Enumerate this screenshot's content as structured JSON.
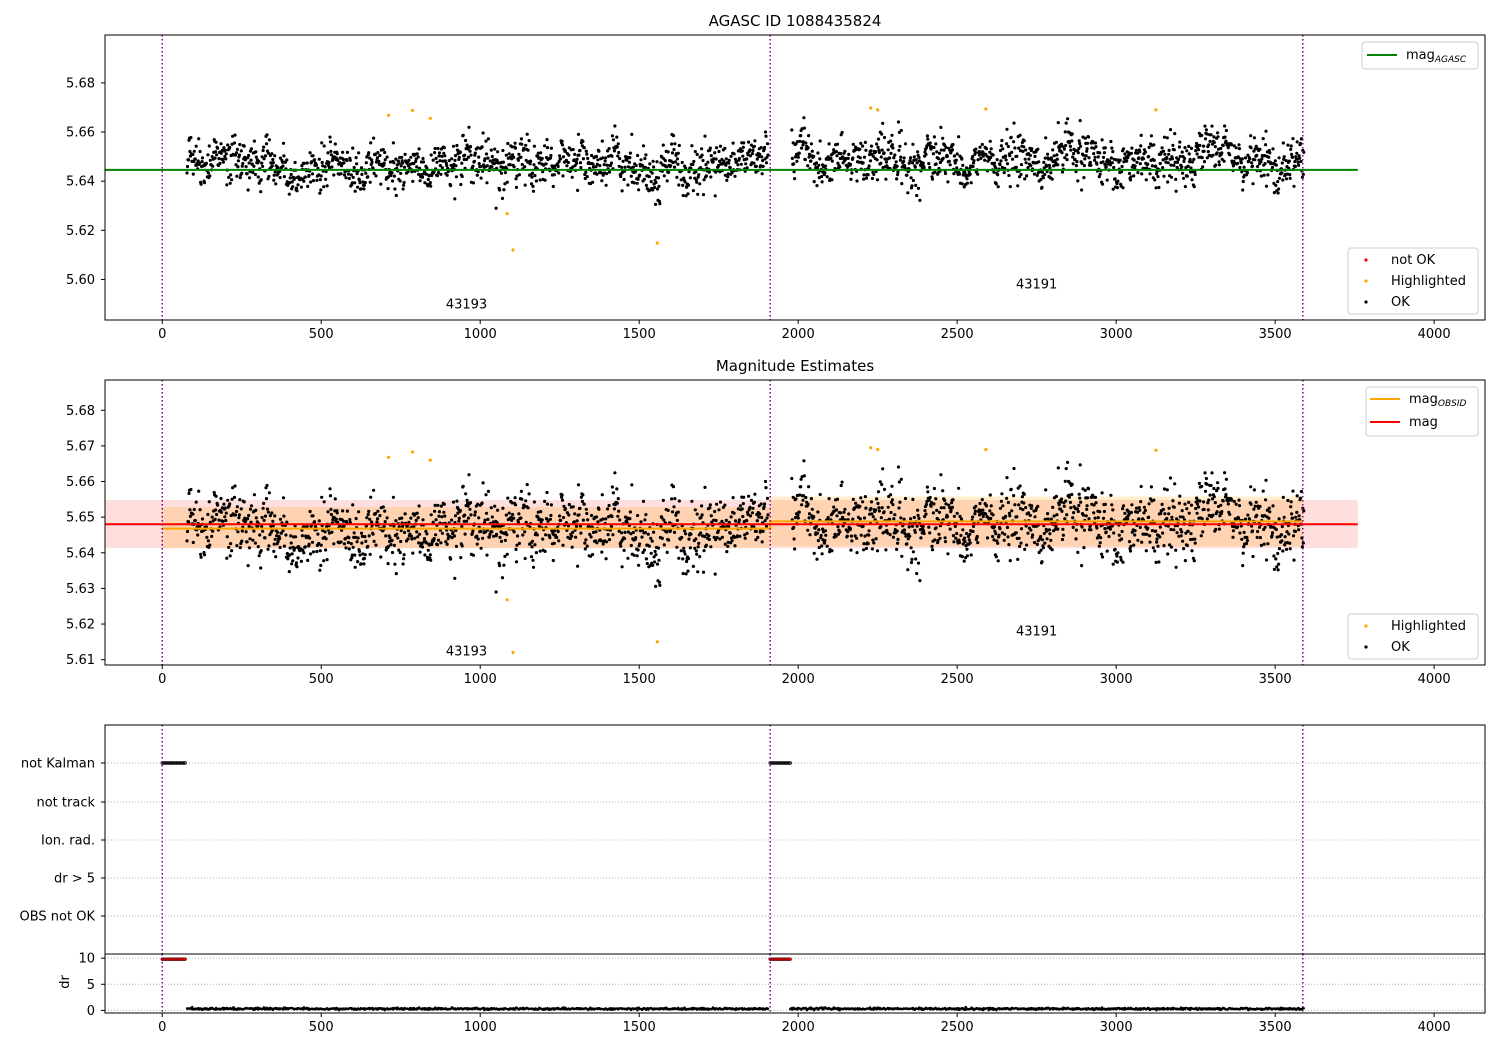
{
  "chart_data": [
    {
      "type": "scatter",
      "title": "AGASC ID 1088435824",
      "xlabel": "",
      "ylabel": "",
      "xlim": [
        -180,
        4160
      ],
      "ylim": [
        5.5835,
        5.6995
      ],
      "x_ticks": [
        0,
        500,
        1000,
        1500,
        2000,
        2500,
        3000,
        3500,
        4000
      ],
      "y_ticks": [
        5.6,
        5.62,
        5.64,
        5.66,
        5.68
      ],
      "y_tick_labels": [
        "5.60",
        "5.62",
        "5.64",
        "5.66",
        "5.68"
      ],
      "obsid_boundaries": [
        0,
        1912,
        3587
      ],
      "obsid_labels": [
        {
          "text": "43193",
          "x": 957,
          "y": 5.5882
        },
        {
          "text": "43191",
          "x": 2750,
          "y": 5.5964
        }
      ],
      "lines": [
        {
          "name": "mag_AGASC",
          "label_main": "mag",
          "label_sub": "AGASC",
          "x": [
            -180,
            3760
          ],
          "y": [
            5.6446,
            5.6446
          ],
          "color": "#008000"
        }
      ],
      "series": [
        {
          "name": "not OK",
          "color": "#ff0000",
          "x": [],
          "y": []
        },
        {
          "name": "Highlighted",
          "color": "#ffa500",
          "x": [
            712,
            787,
            843,
            1085,
            1103,
            1557,
            2228,
            2250,
            2590,
            3125
          ],
          "y": [
            5.6668,
            5.6688,
            5.6656,
            5.6268,
            5.612,
            5.6148,
            5.6698,
            5.669,
            5.6694,
            5.669
          ]
        },
        {
          "name": "OK",
          "color": "#000000",
          "segments": [
            {
              "x_start": 78,
              "x_end": 1905,
              "n": 1200,
              "base": 5.6465,
              "spread": 0.0055
            },
            {
              "x_start": 1980,
              "x_end": 3590,
              "n": 1100,
              "base": 5.649,
              "spread": 0.0058
            }
          ],
          "outliers_x": [
            920,
            1050,
            1070
          ],
          "outliers_y": [
            5.6328,
            5.629,
            5.633
          ]
        }
      ],
      "legend_lines_position": "upper right",
      "legend_points_position": "lower right"
    },
    {
      "type": "scatter",
      "title": "Magnitude Estimates",
      "xlabel": "",
      "ylabel": "",
      "xlim": [
        -180,
        4160
      ],
      "ylim": [
        5.6085,
        5.6885
      ],
      "x_ticks": [
        0,
        500,
        1000,
        1500,
        2000,
        2500,
        3000,
        3500,
        4000
      ],
      "y_ticks": [
        5.61,
        5.62,
        5.63,
        5.64,
        5.65,
        5.66,
        5.67,
        5.68
      ],
      "y_tick_labels": [
        "5.61",
        "5.62",
        "5.63",
        "5.64",
        "5.65",
        "5.66",
        "5.67",
        "5.68"
      ],
      "obsid_boundaries": [
        0,
        1912,
        3587
      ],
      "obsid_labels": [
        {
          "text": "43193",
          "x": 957,
          "y": 5.6111
        },
        {
          "text": "43191",
          "x": 2750,
          "y": 5.6168
        }
      ],
      "bands": [
        {
          "x": [
            -180,
            3760
          ],
          "ylow": 5.6413,
          "yhigh": 5.6548,
          "color": "#ff0000",
          "opacity": 0.13
        },
        {
          "x": [
            0,
            1912
          ],
          "ylow": 5.6413,
          "yhigh": 5.6528,
          "color": "#ffa500",
          "opacity": 0.2
        },
        {
          "x": [
            1912,
            3587
          ],
          "ylow": 5.6418,
          "yhigh": 5.6558,
          "color": "#ffa500",
          "opacity": 0.2
        }
      ],
      "lines": [
        {
          "name": "mag_OBSID",
          "label_main": "mag",
          "label_sub": "OBSID",
          "x": [
            0,
            1912,
            1912,
            3587
          ],
          "y": [
            5.6468,
            5.6468,
            5.6488,
            5.6488
          ],
          "color": "#ffa500"
        },
        {
          "name": "mag",
          "label_main": "mag",
          "label_sub": "",
          "x": [
            -180,
            3760
          ],
          "y": [
            5.648,
            5.648
          ],
          "color": "#ff0000"
        }
      ],
      "series": [
        {
          "name": "Highlighted",
          "color": "#ffa500",
          "x": [
            712,
            787,
            843,
            1085,
            1103,
            1557,
            2228,
            2250,
            2590,
            3125
          ],
          "y": [
            5.6668,
            5.6683,
            5.666,
            5.6268,
            5.612,
            5.615,
            5.6695,
            5.669,
            5.669,
            5.6688
          ]
        },
        {
          "name": "OK",
          "color": "#000000",
          "segments": [
            {
              "x_start": 78,
              "x_end": 1905,
              "n": 1200,
              "base": 5.6465,
              "spread": 0.0055
            },
            {
              "x_start": 1980,
              "x_end": 3590,
              "n": 1100,
              "base": 5.649,
              "spread": 0.0058
            }
          ],
          "outliers_x": [
            920,
            1050,
            1070
          ],
          "outliers_y": [
            5.6328,
            5.629,
            5.633
          ]
        }
      ],
      "legend_lines_position": "upper right",
      "legend_points_position": "lower right"
    },
    {
      "type": "scatter",
      "title": "",
      "xlabel": "",
      "ylabel": "",
      "xlim": [
        -180,
        4160
      ],
      "categories": [
        "not Kalman",
        "not track",
        "Ion. rad.",
        "dr > 5",
        "OBS not OK"
      ],
      "obsid_boundaries": [
        0,
        1912,
        3587
      ],
      "flags": [
        {
          "category": "not Kalman",
          "x_ranges": [
            [
              0,
              75
            ],
            [
              1912,
              1975
            ]
          ],
          "color": "#000000"
        }
      ]
    },
    {
      "type": "scatter",
      "title": "",
      "xlabel": "",
      "ylabel": "dr",
      "xlim": [
        -180,
        4160
      ],
      "ylim": [
        -0.5,
        10.8
      ],
      "x_ticks": [
        0,
        500,
        1000,
        1500,
        2000,
        2500,
        3000,
        3500,
        4000
      ],
      "y_ticks": [
        0,
        5,
        10
      ],
      "y_tick_labels": [
        "0",
        "5",
        "10"
      ],
      "obsid_boundaries": [
        0,
        1912,
        3587
      ],
      "series": [
        {
          "name": "dr not OK",
          "color": "#ff0000",
          "x_ranges": [
            [
              0,
              75
            ],
            [
              1912,
              1975
            ]
          ],
          "y": 9.8
        },
        {
          "name": "dr OK",
          "color": "#000000",
          "segments": [
            {
              "x_start": 78,
              "x_end": 1905,
              "n": 900,
              "base": 0.3,
              "spread": 0.2
            },
            {
              "x_start": 1975,
              "x_end": 3590,
              "n": 800,
              "base": 0.3,
              "spread": 0.2
            }
          ]
        }
      ]
    }
  ],
  "legends": {
    "panel1_lines": [
      {
        "main": "mag",
        "sub": "AGASC"
      }
    ],
    "panel1_points": [
      "not OK",
      "Highlighted",
      "OK"
    ],
    "panel2_lines": [
      {
        "main": "mag",
        "sub": "OBSID"
      },
      {
        "main": "mag",
        "sub": ""
      }
    ],
    "panel2_points": [
      "Highlighted",
      "OK"
    ]
  },
  "colors": {
    "boundary": "#800080",
    "grid": "#b0b0b0",
    "ok": "#000000",
    "highlighted": "#ffa500",
    "not_ok": "#ff0000",
    "agasc_line": "#008000",
    "mag_line": "#ff0000",
    "obsid_line": "#ffa500"
  }
}
